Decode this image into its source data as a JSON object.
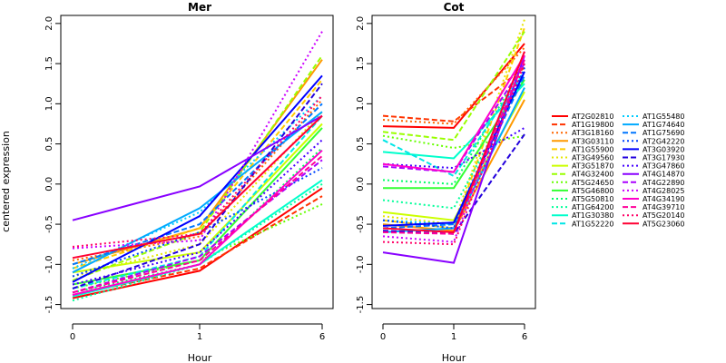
{
  "chart_data": {
    "type": "line",
    "x": [
      0,
      1,
      6
    ],
    "xlabel": "Hour",
    "ylabel": "centered expression",
    "ylim": [
      -1.55,
      2.1
    ],
    "yticks": [
      -1.5,
      -1.0,
      -0.5,
      0.0,
      0.5,
      1.0,
      1.5,
      2.0
    ],
    "ytick_labels": [
      "-1.5",
      "-1.0",
      "-0.5",
      "0.0",
      "0.5",
      "1.0",
      "1.5",
      "2.0"
    ],
    "xtick_labels": [
      "0",
      "1",
      "6"
    ],
    "grid": false,
    "legend_position": "right",
    "panels": [
      {
        "title": "Mer",
        "series": [
          {
            "name": "AT2G02810",
            "color": "#ff0000",
            "dash": "solid",
            "values": [
              -1.42,
              -1.08,
              -0.05
            ]
          },
          {
            "name": "AT1G19800",
            "color": "#ff3300",
            "dash": "dashed",
            "values": [
              -1.38,
              -1.05,
              -0.15
            ]
          },
          {
            "name": "AT3G18160",
            "color": "#ff6600",
            "dash": "dotted",
            "values": [
              -0.95,
              -0.65,
              1.05
            ]
          },
          {
            "name": "AT3G03110",
            "color": "#ff9900",
            "dash": "solid",
            "values": [
              -1.0,
              -0.55,
              1.55
            ]
          },
          {
            "name": "AT1G55900",
            "color": "#ffcc00",
            "dash": "dashed",
            "values": [
              -1.05,
              -0.55,
              1.3
            ]
          },
          {
            "name": "AT3G49560",
            "color": "#e6e600",
            "dash": "dotted",
            "values": [
              -1.15,
              -0.75,
              0.9
            ]
          },
          {
            "name": "AT3G51870",
            "color": "#ccff00",
            "dash": "solid",
            "values": [
              -1.1,
              -0.85,
              0.75
            ]
          },
          {
            "name": "AT4G32400",
            "color": "#99ff00",
            "dash": "dashed",
            "values": [
              -1.2,
              -0.6,
              1.6
            ]
          },
          {
            "name": "AT5G24650",
            "color": "#66ff00",
            "dash": "dotted",
            "values": [
              -1.3,
              -0.95,
              -0.25
            ]
          },
          {
            "name": "AT5G46800",
            "color": "#33ff33",
            "dash": "solid",
            "values": [
              -1.25,
              -0.95,
              0.7
            ]
          },
          {
            "name": "AT5G50810",
            "color": "#00ff66",
            "dash": "dotted",
            "values": [
              -1.35,
              -1.0,
              0.45
            ]
          },
          {
            "name": "AT1G64200",
            "color": "#00ff99",
            "dash": "dotted",
            "values": [
              -1.45,
              -1.0,
              0.0
            ]
          },
          {
            "name": "AT1G30380",
            "color": "#00ffcc",
            "dash": "solid",
            "values": [
              -1.4,
              -1.0,
              0.05
            ]
          },
          {
            "name": "AT1G52220",
            "color": "#00e6e6",
            "dash": "dashed",
            "values": [
              -1.3,
              -0.9,
              0.85
            ]
          },
          {
            "name": "AT1G55480",
            "color": "#00ccff",
            "dash": "dotted",
            "values": [
              -1.05,
              -0.35,
              1.1
            ]
          },
          {
            "name": "AT1G74640",
            "color": "#00aaff",
            "dash": "solid",
            "values": [
              -1.1,
              -0.3,
              0.9
            ]
          },
          {
            "name": "AT1G75690",
            "color": "#0077ff",
            "dash": "dashed",
            "values": [
              -1.0,
              -0.5,
              1.0
            ]
          },
          {
            "name": "AT2G42220",
            "color": "#0044ff",
            "dash": "dotted",
            "values": [
              -1.15,
              -0.6,
              0.2
            ]
          },
          {
            "name": "AT3G03920",
            "color": "#0000ff",
            "dash": "solid",
            "values": [
              -1.22,
              -0.4,
              1.35
            ]
          },
          {
            "name": "AT3G17930",
            "color": "#2200dd",
            "dash": "dashed",
            "values": [
              -1.3,
              -0.75,
              1.25
            ]
          },
          {
            "name": "AT3G47860",
            "color": "#4400ff",
            "dash": "dotted",
            "values": [
              -1.25,
              -0.85,
              0.55
            ]
          },
          {
            "name": "AT4G14870",
            "color": "#8800ff",
            "dash": "solid",
            "values": [
              -0.45,
              -0.03,
              0.85
            ]
          },
          {
            "name": "AT4G22890",
            "color": "#aa00ff",
            "dash": "dashed",
            "values": [
              -1.35,
              -0.9,
              0.3
            ]
          },
          {
            "name": "AT4G28025",
            "color": "#cc00ff",
            "dash": "dotted",
            "values": [
              -0.8,
              -0.7,
              1.9
            ]
          },
          {
            "name": "AT4G34190",
            "color": "#ff00cc",
            "dash": "solid",
            "values": [
              -1.38,
              -1.0,
              0.42
            ]
          },
          {
            "name": "AT4G39710",
            "color": "#ff0099",
            "dash": "dashed",
            "values": [
              -1.35,
              -0.95,
              0.35
            ]
          },
          {
            "name": "AT5G20140",
            "color": "#ff0066",
            "dash": "dotted",
            "values": [
              -0.78,
              -0.62,
              1.1
            ]
          },
          {
            "name": "AT5G23060",
            "color": "#ff0033",
            "dash": "solid",
            "values": [
              -0.92,
              -0.62,
              0.85
            ]
          }
        ]
      },
      {
        "title": "Cot",
        "series": [
          {
            "name": "AT2G02810",
            "color": "#ff0000",
            "dash": "solid",
            "values": [
              0.72,
              0.7,
              1.75
            ]
          },
          {
            "name": "AT1G19800",
            "color": "#ff3300",
            "dash": "dashed",
            "values": [
              0.85,
              0.78,
              1.45
            ]
          },
          {
            "name": "AT3G18160",
            "color": "#ff6600",
            "dash": "dotted",
            "values": [
              0.8,
              0.75,
              1.7
            ]
          },
          {
            "name": "AT3G03110",
            "color": "#ff9900",
            "dash": "solid",
            "values": [
              -0.5,
              -0.58,
              1.05
            ]
          },
          {
            "name": "AT1G55900",
            "color": "#ffcc00",
            "dash": "dashed",
            "values": [
              -0.45,
              -0.55,
              1.95
            ]
          },
          {
            "name": "AT3G49560",
            "color": "#e6e600",
            "dash": "dotted",
            "values": [
              -0.4,
              -0.5,
              2.05
            ]
          },
          {
            "name": "AT3G51870",
            "color": "#ccff00",
            "dash": "solid",
            "values": [
              -0.35,
              -0.45,
              1.15
            ]
          },
          {
            "name": "AT4G32400",
            "color": "#99ff00",
            "dash": "dashed",
            "values": [
              0.65,
              0.55,
              1.9
            ]
          },
          {
            "name": "AT5G24650",
            "color": "#66ff00",
            "dash": "dotted",
            "values": [
              0.6,
              0.45,
              0.6
            ]
          },
          {
            "name": "AT5G46800",
            "color": "#33ff33",
            "dash": "solid",
            "values": [
              -0.05,
              -0.05,
              1.3
            ]
          },
          {
            "name": "AT5G50810",
            "color": "#00ff66",
            "dash": "dotted",
            "values": [
              0.05,
              0.0,
              1.5
            ]
          },
          {
            "name": "AT1G64200",
            "color": "#00ff99",
            "dash": "dotted",
            "values": [
              -0.2,
              -0.3,
              1.35
            ]
          },
          {
            "name": "AT1G30380",
            "color": "#00ffcc",
            "dash": "solid",
            "values": [
              0.4,
              0.32,
              1.25
            ]
          },
          {
            "name": "AT1G52220",
            "color": "#00e6e6",
            "dash": "dashed",
            "values": [
              0.55,
              0.1,
              1.4
            ]
          },
          {
            "name": "AT1G55480",
            "color": "#00ccff",
            "dash": "dotted",
            "values": [
              -0.45,
              -0.5,
              1.55
            ]
          },
          {
            "name": "AT1G74640",
            "color": "#00aaff",
            "dash": "solid",
            "values": [
              -0.6,
              -0.55,
              1.2
            ]
          },
          {
            "name": "AT1G75690",
            "color": "#0077ff",
            "dash": "dashed",
            "values": [
              -0.55,
              -0.5,
              1.35
            ]
          },
          {
            "name": "AT2G42220",
            "color": "#0044ff",
            "dash": "dotted",
            "values": [
              -0.45,
              -0.55,
              1.45
            ]
          },
          {
            "name": "AT3G03920",
            "color": "#0000ff",
            "dash": "solid",
            "values": [
              -0.52,
              -0.48,
              1.4
            ]
          },
          {
            "name": "AT3G17930",
            "color": "#2200dd",
            "dash": "dashed",
            "values": [
              -0.58,
              -0.62,
              0.62
            ]
          },
          {
            "name": "AT3G47860",
            "color": "#4400ff",
            "dash": "dotted",
            "values": [
              0.25,
              0.2,
              0.7
            ]
          },
          {
            "name": "AT4G14870",
            "color": "#8800ff",
            "dash": "solid",
            "values": [
              -0.85,
              -0.98,
              1.6
            ]
          },
          {
            "name": "AT4G22890",
            "color": "#aa00ff",
            "dash": "dashed",
            "values": [
              0.22,
              0.15,
              1.5
            ]
          },
          {
            "name": "AT4G28025",
            "color": "#cc00ff",
            "dash": "dotted",
            "values": [
              -0.65,
              -0.72,
              1.65
            ]
          },
          {
            "name": "AT4G34190",
            "color": "#ff00cc",
            "dash": "solid",
            "values": [
              0.25,
              0.15,
              1.6
            ]
          },
          {
            "name": "AT4G39710",
            "color": "#ff0099",
            "dash": "dashed",
            "values": [
              -0.6,
              -0.62,
              1.55
            ]
          },
          {
            "name": "AT5G20140",
            "color": "#ff0066",
            "dash": "dotted",
            "values": [
              -0.72,
              -0.75,
              1.5
            ]
          },
          {
            "name": "AT5G23060",
            "color": "#ff0033",
            "dash": "solid",
            "values": [
              -0.55,
              -0.6,
              1.65
            ]
          }
        ]
      }
    ]
  }
}
